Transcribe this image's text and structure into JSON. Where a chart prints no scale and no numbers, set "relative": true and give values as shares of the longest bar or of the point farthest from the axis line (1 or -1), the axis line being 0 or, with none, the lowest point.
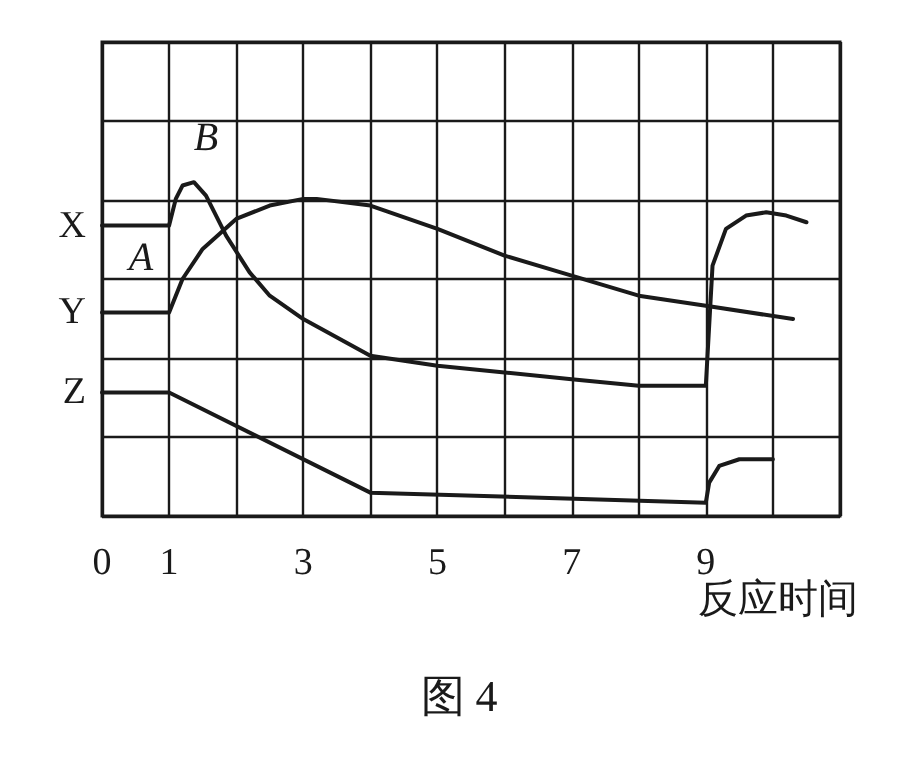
{
  "chart_data": {
    "type": "line",
    "title": "图 4",
    "xlabel": "反应时间",
    "relative": true,
    "grid": true,
    "marker": "none",
    "xlim": [
      0,
      11
    ],
    "xticks": [
      0,
      1,
      {
        "value": 2,
        "label": null
      },
      3,
      {
        "value": 4,
        "label": null
      },
      5,
      {
        "value": 6,
        "label": null
      },
      7,
      {
        "value": 8,
        "label": null
      },
      9,
      {
        "value": 10,
        "label": null
      }
    ],
    "annotations": [
      {
        "text": "A",
        "x": 1,
        "y": 0.87
      },
      {
        "text": "B",
        "x": 1.37,
        "y": 1
      }
    ],
    "series": [
      {
        "name": "X",
        "color": "#1a1a1a",
        "x": [
          0,
          1,
          1.1,
          1.2,
          1.37,
          1.55,
          1.85,
          2.2,
          2.5,
          3,
          4,
          5,
          6,
          7,
          8,
          9,
          9.1,
          9.3,
          9.6,
          9.9,
          10.2,
          10.5
        ],
        "values": [
          0.87,
          0.87,
          0.95,
          0.99,
          1,
          0.96,
          0.84,
          0.73,
          0.66,
          0.59,
          0.48,
          0.45,
          0.43,
          0.41,
          0.39,
          0.39,
          0.75,
          0.86,
          0.9,
          0.91,
          0.9,
          0.88
        ]
      },
      {
        "name": "Y",
        "color": "#1a1a1a",
        "x": [
          0,
          1,
          1.2,
          1.5,
          2,
          2.5,
          3,
          3.2,
          4,
          5,
          6,
          7,
          8,
          9,
          10.3
        ],
        "values": [
          0.61,
          0.61,
          0.71,
          0.8,
          0.89,
          0.93,
          0.95,
          0.95,
          0.93,
          0.86,
          0.78,
          0.72,
          0.66,
          0.63,
          0.59
        ]
      },
      {
        "name": "Z",
        "color": "#1a1a1a",
        "x": [
          0,
          1,
          4,
          9,
          9.05,
          9.2,
          9.5,
          10
        ],
        "values": [
          0.37,
          0.37,
          0.07,
          0.04,
          0.1,
          0.15,
          0.17,
          0.17
        ]
      }
    ]
  }
}
